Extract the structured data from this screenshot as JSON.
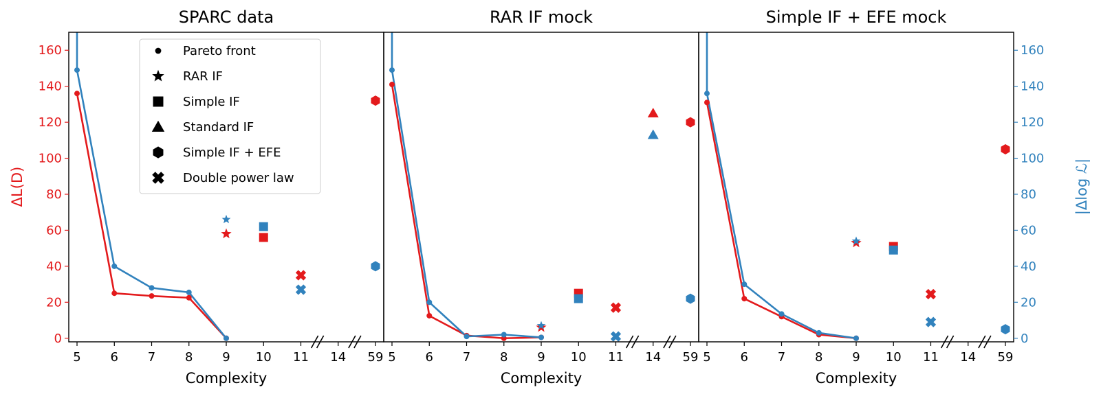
{
  "colors": {
    "red": "#e31a1c",
    "blue": "#3182bd",
    "axis": "#000000"
  },
  "shared": {
    "xlabel": "Complexity",
    "ylabel_left": "ΔL(D)",
    "ylabel_right": "|Δlog ℒ|",
    "ylim": [
      -2,
      170
    ],
    "yticks": [
      0,
      20,
      40,
      60,
      80,
      100,
      120,
      140,
      160
    ],
    "x_positions": [
      5,
      6,
      7,
      8,
      9,
      10,
      11,
      12,
      13
    ],
    "x_tick_labels": [
      "5",
      "6",
      "7",
      "8",
      "9",
      "10",
      "11",
      "14",
      "59"
    ],
    "axis_breaks": [
      11.5,
      12.5
    ]
  },
  "legend": {
    "placement": "upper-left of first panel",
    "entries": [
      {
        "label": "Pareto front",
        "marker": "small-circle"
      },
      {
        "label": "RAR IF",
        "marker": "star"
      },
      {
        "label": "Simple IF",
        "marker": "square"
      },
      {
        "label": "Standard IF",
        "marker": "triangle"
      },
      {
        "label": "Simple IF + EFE",
        "marker": "hexagon"
      },
      {
        "label": "Double power law",
        "marker": "cross"
      }
    ]
  },
  "chart_data": [
    {
      "type": "scatter",
      "title": "SPARC data",
      "xlabel": "Complexity",
      "pareto_front": {
        "complexity": [
          5,
          6,
          7,
          8,
          9
        ],
        "delta_L": [
          136,
          25,
          23.5,
          22.5,
          0
        ],
        "delta_logL": [
          149,
          40,
          28,
          25.5,
          0
        ],
        "delta_logL_curve_start": 500
      },
      "models": [
        {
          "name": "RAR IF",
          "marker": "star",
          "x": 9,
          "delta_L": 58,
          "delta_logL": 66
        },
        {
          "name": "Simple IF",
          "marker": "square",
          "x": 10,
          "delta_L": 56,
          "delta_logL": 62
        },
        {
          "name": "Double power law",
          "marker": "cross",
          "x": 11,
          "delta_L": 35,
          "delta_logL": 27
        },
        {
          "name": "Simple IF + EFE",
          "marker": "hexagon",
          "x": 13,
          "delta_L": 132,
          "delta_logL": 40
        }
      ]
    },
    {
      "type": "scatter",
      "title": "RAR IF mock",
      "xlabel": "Complexity",
      "pareto_front": {
        "complexity": [
          5,
          6,
          7,
          8,
          9
        ],
        "delta_L": [
          141,
          12.5,
          1.5,
          0,
          0.5
        ],
        "delta_logL": [
          149,
          20,
          1,
          2,
          0.5
        ],
        "delta_logL_curve_start": 500
      },
      "models": [
        {
          "name": "RAR IF",
          "marker": "star",
          "x": 9,
          "delta_L": 6,
          "delta_logL": 7
        },
        {
          "name": "Simple IF",
          "marker": "square",
          "x": 10,
          "delta_L": 25,
          "delta_logL": 22
        },
        {
          "name": "Double power law",
          "marker": "cross",
          "x": 11,
          "delta_L": 17,
          "delta_logL": 1
        },
        {
          "name": "Standard IF",
          "marker": "triangle",
          "x": 12,
          "delta_L": 125,
          "delta_logL": 113
        },
        {
          "name": "Simple IF + EFE",
          "marker": "hexagon",
          "x": 13,
          "delta_L": 120,
          "delta_logL": 22
        }
      ]
    },
    {
      "type": "scatter",
      "title": "Simple IF + EFE mock",
      "xlabel": "Complexity",
      "pareto_front": {
        "complexity": [
          5,
          6,
          7,
          8,
          9
        ],
        "delta_L": [
          131,
          22,
          12,
          2,
          0
        ],
        "delta_logL": [
          136,
          30,
          13.5,
          3,
          0
        ],
        "delta_logL_curve_start": 500
      },
      "models": [
        {
          "name": "RAR IF",
          "marker": "star",
          "x": 9,
          "delta_L": 53,
          "delta_logL": 54
        },
        {
          "name": "Simple IF",
          "marker": "square",
          "x": 10,
          "delta_L": 51,
          "delta_logL": 49
        },
        {
          "name": "Double power law",
          "marker": "cross",
          "x": 11,
          "delta_L": 24.5,
          "delta_logL": 9
        },
        {
          "name": "Simple IF + EFE",
          "marker": "hexagon",
          "x": 13,
          "delta_L": 105,
          "delta_logL": 5
        }
      ]
    }
  ]
}
